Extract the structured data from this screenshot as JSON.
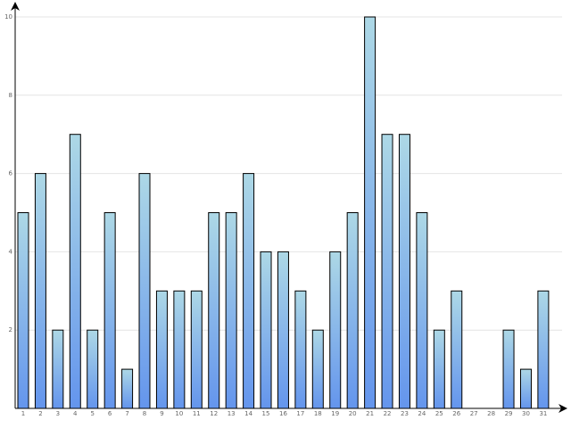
{
  "chart_data": {
    "type": "bar",
    "categories": [
      "1",
      "2",
      "3",
      "4",
      "5",
      "6",
      "7",
      "8",
      "9",
      "10",
      "11",
      "12",
      "13",
      "14",
      "15",
      "16",
      "17",
      "18",
      "19",
      "20",
      "21",
      "22",
      "23",
      "24",
      "25",
      "26",
      "27",
      "28",
      "29",
      "30",
      "31"
    ],
    "values": [
      5,
      6,
      2,
      7,
      2,
      5,
      1,
      6,
      3,
      3,
      3,
      5,
      5,
      6,
      4,
      4,
      3,
      2,
      4,
      5,
      10,
      7,
      7,
      5,
      2,
      3,
      0,
      0,
      2,
      1,
      3
    ],
    "colors": [
      "#add8e6",
      "#6495ed"
    ],
    "ylim": [
      0,
      10
    ],
    "yticks": [
      2,
      4,
      6,
      8,
      10
    ],
    "grid": true
  }
}
